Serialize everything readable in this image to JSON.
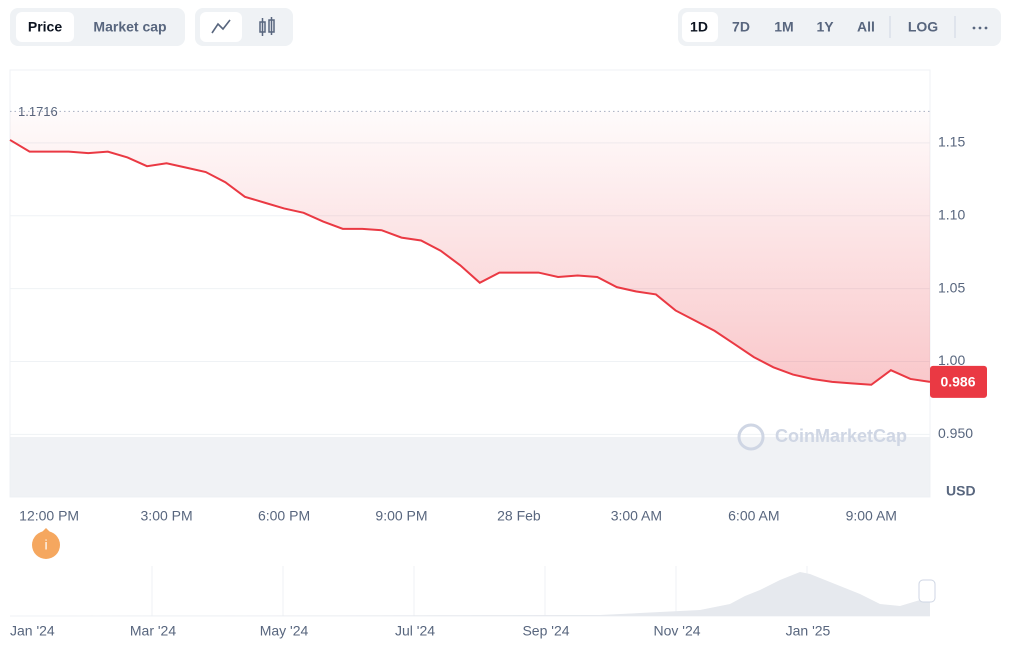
{
  "toolbar": {
    "view_tabs": [
      "Price",
      "Market cap"
    ],
    "ranges": [
      "1D",
      "7D",
      "1M",
      "1Y",
      "All"
    ],
    "scale": "LOG"
  },
  "chart_data": {
    "type": "line",
    "categories": [
      null,
      null,
      "12:00 PM",
      null,
      null,
      null,
      null,
      null,
      "3:00 PM",
      null,
      null,
      null,
      null,
      null,
      "6:00 PM",
      null,
      null,
      null,
      null,
      null,
      "9:00 PM",
      null,
      null,
      null,
      null,
      null,
      "28 Feb",
      null,
      null,
      null,
      null,
      null,
      "3:00 AM",
      null,
      null,
      null,
      null,
      null,
      "6:00 AM",
      null,
      null,
      null,
      null,
      null,
      "9:00 AM",
      null,
      null,
      null
    ],
    "values": [
      1.152,
      1.144,
      1.144,
      1.144,
      1.143,
      1.144,
      1.14,
      1.134,
      1.136,
      1.133,
      1.13,
      1.123,
      1.113,
      1.109,
      1.105,
      1.102,
      1.096,
      1.091,
      1.091,
      1.09,
      1.085,
      1.083,
      1.076,
      1.066,
      1.054,
      1.061,
      1.061,
      1.061,
      1.058,
      1.059,
      1.058,
      1.051,
      1.048,
      1.046,
      1.035,
      1.028,
      1.021,
      1.012,
      1.003,
      0.996,
      0.991,
      0.988,
      0.986,
      0.985,
      0.984,
      0.994,
      0.988,
      0.986
    ],
    "color": "#ea3943",
    "ylim": [
      0.907,
      1.2
    ],
    "yticks": [
      {
        "value": 0.95,
        "label": "0.950"
      },
      {
        "value": 1,
        "label": "1.00"
      },
      1.05,
      {
        "value": 1.1,
        "label": "1.10"
      },
      1.15
    ],
    "grid": true,
    "high": 1.1716,
    "current_price": 0.986,
    "unit_label": "USD",
    "watermark": "CoinMarketCap",
    "event_marker": "i"
  },
  "navigator": {
    "labels": [
      "Jan '24",
      "Mar '24",
      "May '24",
      "Jul '24",
      "Sep '24",
      "Nov '24",
      "Jan '25"
    ]
  }
}
